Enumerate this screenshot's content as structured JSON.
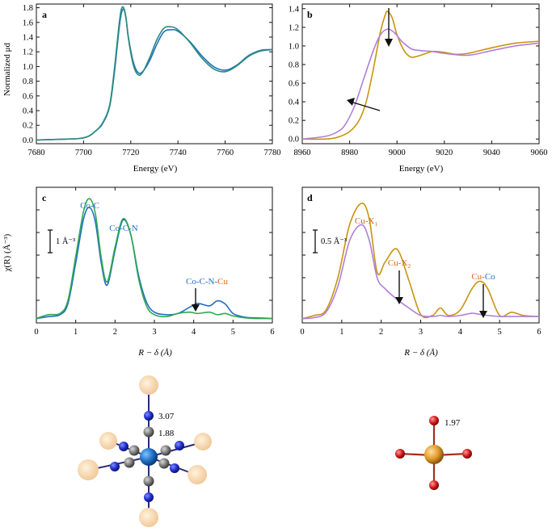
{
  "colors": {
    "blue": "#1f6fc4",
    "green": "#2fa84f",
    "gold": "#c9940e",
    "violet": "#b07fd8",
    "teal": "#2a8c7d",
    "orange_text": "#d6671a",
    "red_text": "#c0392b",
    "axis": "#111111"
  },
  "chart_data": [
    {
      "panel": "a",
      "type": "line",
      "xlabel": "Energy (eV)",
      "ylabel": "Normalized μd",
      "xlim": [
        7680,
        7780
      ],
      "ylim": [
        -0.05,
        1.85
      ],
      "xticks": [
        7680,
        7700,
        7720,
        7740,
        7760,
        7780
      ],
      "yticks": [
        0.0,
        0.2,
        0.4,
        0.6,
        0.8,
        1.0,
        1.2,
        1.4,
        1.6,
        1.8
      ],
      "grid": false,
      "series": [
        {
          "color": "#1f6fc4",
          "x": [
            7680,
            7690,
            7698,
            7702,
            7705,
            7708,
            7711,
            7713,
            7715,
            7716,
            7717,
            7718,
            7719,
            7721,
            7723,
            7725,
            7728,
            7731,
            7734,
            7737,
            7740,
            7745,
            7750,
            7755,
            7760,
            7765,
            7770,
            7775,
            7780
          ],
          "y": [
            0.0,
            0.01,
            0.02,
            0.05,
            0.12,
            0.22,
            0.45,
            0.9,
            1.5,
            1.72,
            1.78,
            1.65,
            1.4,
            1.07,
            0.92,
            0.93,
            1.08,
            1.3,
            1.47,
            1.5,
            1.48,
            1.34,
            1.15,
            1.0,
            0.95,
            1.02,
            1.15,
            1.22,
            1.23
          ]
        },
        {
          "color": "#2a8c7d",
          "x": [
            7680,
            7690,
            7698,
            7702,
            7705,
            7708,
            7711,
            7713,
            7715,
            7716,
            7717,
            7718,
            7719,
            7721,
            7723,
            7725,
            7728,
            7731,
            7734,
            7737,
            7740,
            7745,
            7750,
            7755,
            7760,
            7765,
            7770,
            7775,
            7780
          ],
          "y": [
            0.0,
            0.01,
            0.02,
            0.05,
            0.12,
            0.23,
            0.47,
            0.95,
            1.56,
            1.78,
            1.8,
            1.66,
            1.38,
            1.03,
            0.89,
            0.92,
            1.12,
            1.36,
            1.52,
            1.54,
            1.5,
            1.33,
            1.12,
            0.97,
            0.93,
            1.01,
            1.14,
            1.21,
            1.23
          ]
        }
      ]
    },
    {
      "panel": "b",
      "type": "line",
      "xlabel": "Energy (eV)",
      "xlim": [
        8960,
        9060
      ],
      "ylim": [
        -0.05,
        1.45
      ],
      "xticks": [
        8960,
        8980,
        9000,
        9020,
        9040,
        9060
      ],
      "yticks": [
        0.0,
        0.2,
        0.4,
        0.6,
        0.8,
        1.0,
        1.2,
        1.4
      ],
      "grid": false,
      "series": [
        {
          "color": "#c9940e",
          "x": [
            8960,
            8970,
            8975,
            8980,
            8984,
            8987,
            8990,
            8993,
            8995,
            8996,
            8998,
            9000,
            9003,
            9006,
            9010,
            9015,
            9020,
            9025,
            9030,
            9040,
            9050,
            9060
          ],
          "y": [
            0.0,
            0.0,
            0.02,
            0.08,
            0.2,
            0.4,
            0.75,
            1.15,
            1.33,
            1.37,
            1.3,
            1.12,
            0.95,
            0.88,
            0.9,
            0.94,
            0.93,
            0.91,
            0.92,
            0.98,
            1.03,
            1.05
          ]
        },
        {
          "color": "#b07fd8",
          "x": [
            8960,
            8970,
            8975,
            8978,
            8982,
            8986,
            8990,
            8993,
            8996,
            8999,
            9002,
            9006,
            9010,
            9015,
            9020,
            9030,
            9040,
            9050,
            9060
          ],
          "y": [
            0.0,
            0.03,
            0.08,
            0.15,
            0.35,
            0.65,
            0.95,
            1.12,
            1.18,
            1.14,
            1.05,
            0.97,
            0.95,
            0.94,
            0.92,
            0.9,
            0.95,
            1.0,
            1.03
          ]
        }
      ]
    },
    {
      "panel": "c",
      "type": "line",
      "xlabel": "R − δ (Å)",
      "ylabel": "χ(R) (Å⁻³)",
      "xlim": [
        0,
        6
      ],
      "ylim": [
        -0.05,
        2.1
      ],
      "xticks": [
        0,
        1,
        2,
        3,
        4,
        5,
        6
      ],
      "grid": false,
      "annotations": [
        "Co-C",
        "Co-C-N",
        "Co-C-N-Cu"
      ],
      "scale_bar": "1 Å⁻³",
      "series": [
        {
          "color": "#1f6fc4",
          "x": [
            0,
            0.3,
            0.6,
            0.8,
            1.0,
            1.2,
            1.35,
            1.5,
            1.65,
            1.8,
            2.0,
            2.2,
            2.4,
            2.6,
            2.8,
            3.0,
            3.3,
            3.6,
            3.9,
            4.1,
            4.4,
            4.6,
            4.8,
            5.0,
            5.3,
            5.6,
            6.0
          ],
          "y": [
            0.02,
            0.05,
            0.08,
            0.25,
            0.9,
            1.6,
            1.78,
            1.55,
            0.9,
            0.55,
            1.1,
            1.58,
            1.35,
            0.7,
            0.28,
            0.12,
            0.08,
            0.1,
            0.2,
            0.26,
            0.22,
            0.3,
            0.25,
            0.1,
            0.04,
            0.03,
            0.02
          ]
        },
        {
          "color": "#2fa84f",
          "x": [
            0,
            0.3,
            0.6,
            0.8,
            1.0,
            1.2,
            1.35,
            1.5,
            1.65,
            1.8,
            2.0,
            2.2,
            2.4,
            2.6,
            2.8,
            3.0,
            3.3,
            3.6,
            3.9,
            4.1,
            4.4,
            4.6,
            4.8,
            5.0,
            5.3,
            5.6,
            6.0
          ],
          "y": [
            0.02,
            0.08,
            0.1,
            0.3,
            1.0,
            1.72,
            1.92,
            1.68,
            0.98,
            0.6,
            1.15,
            1.6,
            1.35,
            0.65,
            0.22,
            0.08,
            0.05,
            0.1,
            0.12,
            0.1,
            0.12,
            0.08,
            0.1,
            0.06,
            0.03,
            0.02,
            0.02
          ]
        }
      ]
    },
    {
      "panel": "d",
      "type": "line",
      "xlabel": "R − δ (Å)",
      "xlim": [
        0,
        6
      ],
      "ylim": [
        -0.02,
        1.25
      ],
      "xticks": [
        0,
        1,
        2,
        3,
        4,
        5,
        6
      ],
      "grid": false,
      "annotations": [
        "Cu-X₁",
        "Cu-X₂",
        "Cu-Co"
      ],
      "scale_bar": "0.5 Å⁻³",
      "series": [
        {
          "color": "#c9940e",
          "x": [
            0,
            0.3,
            0.6,
            0.9,
            1.2,
            1.5,
            1.7,
            1.9,
            2.1,
            2.4,
            2.7,
            3.0,
            3.3,
            3.5,
            3.7,
            4.0,
            4.3,
            4.5,
            4.7,
            5.0,
            5.3,
            5.6,
            6.0
          ],
          "y": [
            0.02,
            0.05,
            0.1,
            0.4,
            0.9,
            1.1,
            0.95,
            0.45,
            0.55,
            0.67,
            0.38,
            0.06,
            0.05,
            0.12,
            0.05,
            0.1,
            0.3,
            0.37,
            0.3,
            0.05,
            0.08,
            0.05,
            0.04
          ]
        },
        {
          "color": "#b07fd8",
          "x": [
            0,
            0.3,
            0.6,
            0.9,
            1.2,
            1.5,
            1.7,
            1.9,
            2.1,
            2.4,
            2.7,
            3.0,
            3.3,
            3.5,
            3.7,
            4.0,
            4.3,
            4.5,
            4.7,
            5.0,
            5.3,
            5.6,
            6.0
          ],
          "y": [
            0.02,
            0.03,
            0.08,
            0.32,
            0.75,
            0.9,
            0.75,
            0.4,
            0.3,
            0.2,
            0.12,
            0.05,
            0.04,
            0.05,
            0.04,
            0.05,
            0.07,
            0.06,
            0.05,
            0.04,
            0.04,
            0.04,
            0.04
          ]
        }
      ]
    }
  ],
  "panel_labels": {
    "a": "a",
    "b": "b",
    "c": "c",
    "d": "d"
  },
  "annotation_text": {
    "co_c": "Co-C",
    "co_c_n_prefix": "Co-C-N",
    "co_c_n_cu_prefix": "Co-C-N-",
    "co_c_n_cu_suffix": "Cu",
    "scale_c": "1 Å⁻³",
    "cu_x1_base": "Cu-X",
    "cu_x1_sub": "1",
    "cu_x2_base": "Cu-X",
    "cu_x2_sub": "2",
    "cu_co_prefix": "Cu-",
    "cu_co_suffix": "Co",
    "scale_d": "0.5 Å⁻³"
  },
  "molecules": {
    "left_distance_outer": "3.07",
    "left_distance_inner": "1.88",
    "right_distance": "1.97"
  }
}
